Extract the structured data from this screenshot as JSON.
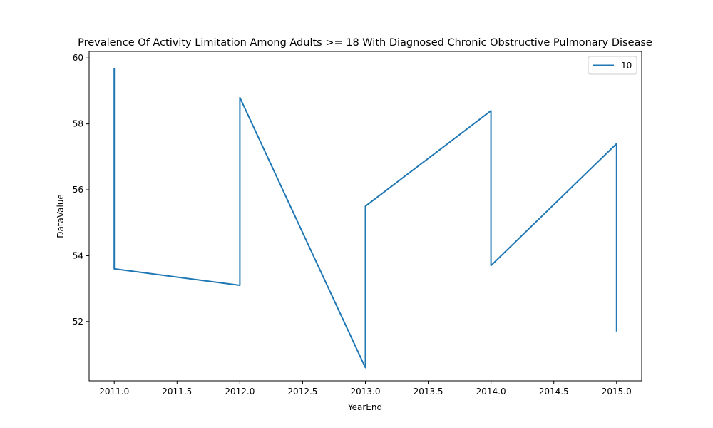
{
  "chart_data": {
    "type": "line",
    "title": "Prevalence Of Activity Limitation Among Adults >= 18 With Diagnosed Chronic Obstructive Pulmonary Disease",
    "xlabel": "YearEnd",
    "ylabel": "DataValue",
    "xlim": [
      2010.8,
      2015.2
    ],
    "ylim": [
      50.2,
      60.2
    ],
    "x_ticks": [
      "2011.0",
      "2011.5",
      "2012.0",
      "2012.5",
      "2013.0",
      "2013.5",
      "2014.0",
      "2014.5",
      "2015.0"
    ],
    "y_ticks": [
      "52",
      "54",
      "56",
      "58",
      "60"
    ],
    "grid": false,
    "legend": {
      "position": "top-right"
    },
    "series": [
      {
        "name": "10",
        "color": "#1f77b4",
        "x": [
          2011,
          2011,
          2012,
          2012,
          2013,
          2013,
          2014,
          2014,
          2015,
          2015
        ],
        "y": [
          59.7,
          53.6,
          53.1,
          58.8,
          50.6,
          55.5,
          58.4,
          53.7,
          57.4,
          51.7
        ]
      }
    ]
  }
}
